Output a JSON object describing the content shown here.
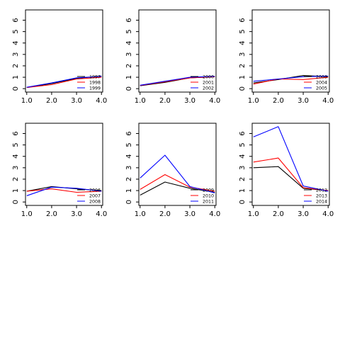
{
  "chart_data": [
    {
      "type": "line",
      "x": [
        1,
        2,
        3,
        4
      ],
      "xlim": [
        0.95,
        4.05
      ],
      "ylim": [
        -0.3,
        6.9
      ],
      "xticks": [
        "1.0",
        "2.0",
        "3.0",
        "4.0"
      ],
      "yticks": [
        "0",
        "1",
        "2",
        "3",
        "4",
        "5",
        "6"
      ],
      "legend_position": "lower-right",
      "series": [
        {
          "name": "1997",
          "color": "#000000",
          "values": [
            0.1,
            0.45,
            0.9,
            1.1
          ]
        },
        {
          "name": "1998",
          "color": "#ff0000",
          "values": [
            0.1,
            0.35,
            0.85,
            1.0
          ]
        },
        {
          "name": "1999",
          "color": "#0000ff",
          "values": [
            0.12,
            0.5,
            0.95,
            1.08
          ]
        }
      ]
    },
    {
      "type": "line",
      "x": [
        1,
        2,
        3,
        4
      ],
      "xlim": [
        0.95,
        4.05
      ],
      "ylim": [
        -0.3,
        6.9
      ],
      "xticks": [
        "1.0",
        "2.0",
        "3.0",
        "4.0"
      ],
      "yticks": [
        "0",
        "1",
        "2",
        "3",
        "4",
        "5",
        "6"
      ],
      "legend_position": "lower-right",
      "series": [
        {
          "name": "2000",
          "color": "#000000",
          "values": [
            0.25,
            0.55,
            0.95,
            1.05
          ]
        },
        {
          "name": "2001",
          "color": "#ff0000",
          "values": [
            0.28,
            0.6,
            0.95,
            1.05
          ]
        },
        {
          "name": "2002",
          "color": "#0000ff",
          "values": [
            0.3,
            0.65,
            1.0,
            1.08
          ]
        }
      ]
    },
    {
      "type": "line",
      "x": [
        1,
        2,
        3,
        4
      ],
      "xlim": [
        0.95,
        4.05
      ],
      "ylim": [
        -0.3,
        6.9
      ],
      "xticks": [
        "1.0",
        "2.0",
        "3.0",
        "4.0"
      ],
      "yticks": [
        "0",
        "1",
        "2",
        "3",
        "4",
        "5",
        "6"
      ],
      "legend_position": "lower-right",
      "series": [
        {
          "name": "2003",
          "color": "#000000",
          "values": [
            0.5,
            0.8,
            1.15,
            1.05
          ]
        },
        {
          "name": "2004",
          "color": "#ff0000",
          "values": [
            0.4,
            0.85,
            0.8,
            1.0
          ]
        },
        {
          "name": "2005",
          "color": "#0000ff",
          "values": [
            0.65,
            0.85,
            1.05,
            1.1
          ]
        }
      ]
    },
    {
      "type": "line",
      "x": [
        1,
        2,
        3,
        4
      ],
      "xlim": [
        0.95,
        4.05
      ],
      "ylim": [
        -0.3,
        6.9
      ],
      "xticks": [
        "1.0",
        "2.0",
        "3.0",
        "4.0"
      ],
      "yticks": [
        "0",
        "1",
        "2",
        "3",
        "4",
        "5",
        "6"
      ],
      "legend_position": "lower-right",
      "series": [
        {
          "name": "2006",
          "color": "#000000",
          "values": [
            0.95,
            1.35,
            1.15,
            1.0
          ]
        },
        {
          "name": "2007",
          "color": "#ff0000",
          "values": [
            0.95,
            1.15,
            0.85,
            0.95
          ]
        },
        {
          "name": "2008",
          "color": "#0000ff",
          "values": [
            0.55,
            1.3,
            1.2,
            0.95
          ]
        }
      ]
    },
    {
      "type": "line",
      "x": [
        1,
        2,
        3,
        4
      ],
      "xlim": [
        0.95,
        4.05
      ],
      "ylim": [
        -0.3,
        6.9
      ],
      "xticks": [
        "1.0",
        "2.0",
        "3.0",
        "4.0"
      ],
      "yticks": [
        "0",
        "1",
        "2",
        "3",
        "4",
        "5",
        "6"
      ],
      "legend_position": "lower-right",
      "series": [
        {
          "name": "2009",
          "color": "#000000",
          "values": [
            0.6,
            1.75,
            1.2,
            0.85
          ]
        },
        {
          "name": "2010",
          "color": "#ff0000",
          "values": [
            1.1,
            2.4,
            1.3,
            0.95
          ]
        },
        {
          "name": "2011",
          "color": "#0000ff",
          "values": [
            2.1,
            4.1,
            1.35,
            0.8
          ]
        }
      ]
    },
    {
      "type": "line",
      "x": [
        1,
        2,
        3,
        4
      ],
      "xlim": [
        0.95,
        4.05
      ],
      "ylim": [
        -0.3,
        6.9
      ],
      "xticks": [
        "1.0",
        "2.0",
        "3.0",
        "4.0"
      ],
      "yticks": [
        "0",
        "1",
        "2",
        "3",
        "4",
        "5",
        "6"
      ],
      "legend_position": "lower-right",
      "series": [
        {
          "name": "2012",
          "color": "#000000",
          "values": [
            3.0,
            3.1,
            1.2,
            1.0
          ]
        },
        {
          "name": "2013",
          "color": "#ff0000",
          "values": [
            3.5,
            3.85,
            1.25,
            1.0
          ]
        },
        {
          "name": "2014",
          "color": "#0000ff",
          "values": [
            5.7,
            6.6,
            1.4,
            0.95
          ]
        }
      ]
    }
  ]
}
